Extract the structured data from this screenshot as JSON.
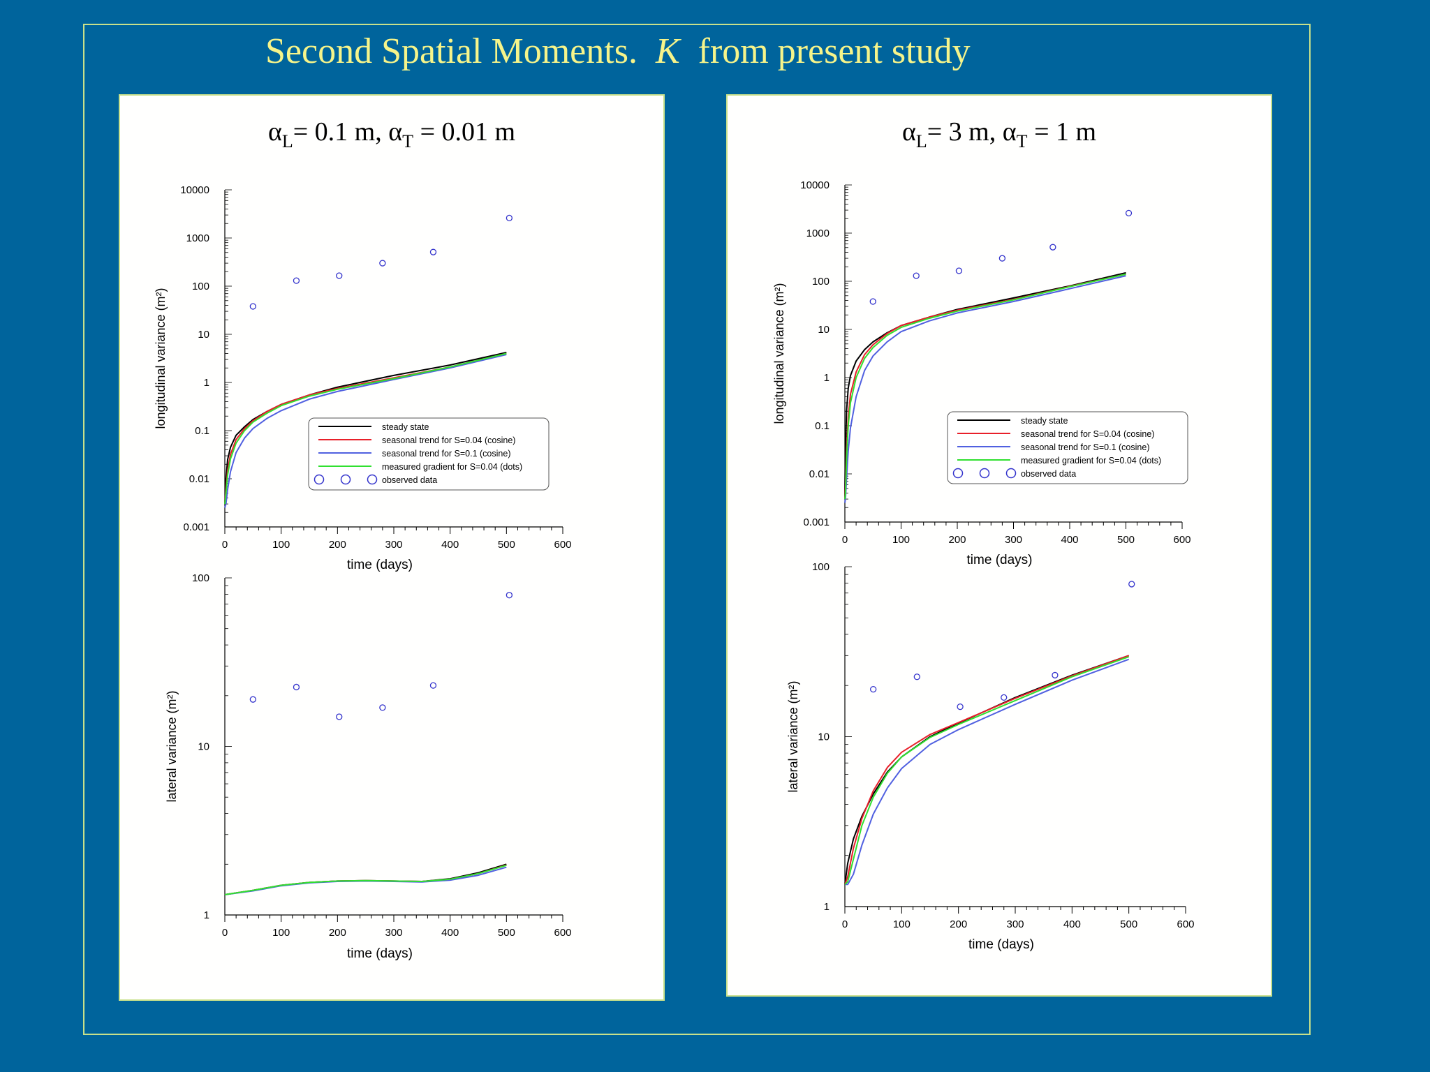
{
  "slide": {
    "title_main": "Second Spatial Moments.",
    "title_k": "K",
    "title_tail": "from present study"
  },
  "colors": {
    "background": "#00649c",
    "frame": "#c8e08a",
    "title": "#f6f48a",
    "steady": "#000000",
    "cos004": "#e8202a",
    "cos01": "#5060e0",
    "dots": "#30e030",
    "observed": "#3333cc"
  },
  "panels": [
    {
      "title": {
        "aL": "α",
        "aL_sub": "L",
        "aL_val": "= 0.1 m, ",
        "aT": "α",
        "aT_sub": "T",
        "aT_val": " = 0.01 m"
      }
    },
    {
      "title": {
        "aL": "α",
        "aL_sub": "L",
        "aL_val": "= 3 m, ",
        "aT": "α",
        "aT_sub": "T",
        "aT_val": " = 1 m"
      }
    }
  ],
  "legend": {
    "entries": [
      "steady  state",
      "seasonal  trend  for  S=0.04  (cosine)",
      "seasonal  trend  for  S=0.1    (cosine)",
      "measured  gradient  for  S=0.04  (dots)"
    ],
    "observed": "observed  data"
  },
  "chart_data": [
    {
      "type": "line",
      "panel": 0,
      "ylabel": "longitudinal  variance  (m²)",
      "xlabel": "time  (days)",
      "xlim": [
        0,
        600
      ],
      "ylim": [
        0.001,
        10000
      ],
      "log_y": true,
      "xticks": [
        "0",
        "100",
        "200",
        "300",
        "400",
        "500",
        "600"
      ],
      "yticks": [
        "0.001",
        "0.01",
        "0.1",
        "1",
        "10",
        "100",
        "1000",
        "10000"
      ],
      "legend": true,
      "series": [
        {
          "name": "steady  state",
          "color": "#000000",
          "x": [
            0,
            2,
            5,
            10,
            20,
            35,
            50,
            75,
            100,
            150,
            200,
            300,
            400,
            500
          ],
          "y": [
            0.003,
            0.01,
            0.025,
            0.045,
            0.08,
            0.12,
            0.17,
            0.25,
            0.35,
            0.55,
            0.8,
            1.4,
            2.3,
            4.2
          ]
        },
        {
          "name": "seasonal  trend  for  S=0.04  (cosine)",
          "color": "#e8202a",
          "x": [
            0,
            2,
            5,
            10,
            20,
            35,
            50,
            75,
            100,
            150,
            200,
            300,
            400,
            500
          ],
          "y": [
            0.003,
            0.006,
            0.015,
            0.032,
            0.065,
            0.11,
            0.16,
            0.25,
            0.35,
            0.55,
            0.75,
            1.25,
            2.1,
            4.0
          ]
        },
        {
          "name": "seasonal  trend  for  S=0.1    (cosine)",
          "color": "#5060e0",
          "x": [
            0,
            2,
            5,
            10,
            20,
            35,
            50,
            75,
            100,
            150,
            200,
            300,
            400,
            500
          ],
          "y": [
            0.0025,
            0.003,
            0.006,
            0.014,
            0.035,
            0.07,
            0.11,
            0.18,
            0.26,
            0.45,
            0.65,
            1.15,
            2.0,
            3.8
          ]
        },
        {
          "name": "measured  gradient  for  S=0.04  (dots)",
          "color": "#30e030",
          "x": [
            0,
            2,
            5,
            10,
            20,
            35,
            50,
            75,
            100,
            150,
            200,
            300,
            400,
            500
          ],
          "y": [
            0.003,
            0.005,
            0.012,
            0.026,
            0.055,
            0.1,
            0.15,
            0.23,
            0.33,
            0.52,
            0.72,
            1.2,
            2.1,
            4.0
          ]
        }
      ],
      "observed": {
        "name": "observed  data",
        "x": [
          50,
          127,
          203,
          280,
          370,
          505
        ],
        "y": [
          38,
          130,
          165,
          300,
          510,
          2600
        ]
      }
    },
    {
      "type": "line",
      "panel": 0,
      "ylabel": "lateral  variance  (m²)",
      "xlabel": "time  (days)",
      "xlim": [
        0,
        600
      ],
      "ylim": [
        1,
        100
      ],
      "log_y": true,
      "xticks": [
        "0",
        "100",
        "200",
        "300",
        "400",
        "500",
        "600"
      ],
      "yticks": [
        "1",
        "10",
        "100"
      ],
      "legend": false,
      "series": [
        {
          "name": "steady  state",
          "color": "#000000",
          "x": [
            0,
            50,
            100,
            150,
            200,
            250,
            300,
            350,
            400,
            450,
            500
          ],
          "y": [
            1.32,
            1.4,
            1.5,
            1.56,
            1.59,
            1.6,
            1.59,
            1.58,
            1.64,
            1.78,
            2.0
          ]
        },
        {
          "name": "seasonal  trend  for  S=0.04  (cosine)",
          "color": "#e8202a",
          "x": [
            0,
            50,
            100,
            150,
            200,
            250,
            300,
            350,
            400,
            450,
            500
          ],
          "y": [
            1.32,
            1.4,
            1.5,
            1.56,
            1.59,
            1.6,
            1.59,
            1.58,
            1.63,
            1.76,
            1.98
          ]
        },
        {
          "name": "seasonal  trend  for  S=0.1    (cosine)",
          "color": "#5060e0",
          "x": [
            0,
            50,
            100,
            150,
            200,
            250,
            300,
            350,
            400,
            450,
            500
          ],
          "y": [
            1.32,
            1.39,
            1.49,
            1.55,
            1.58,
            1.59,
            1.58,
            1.57,
            1.61,
            1.72,
            1.92
          ]
        },
        {
          "name": "measured  gradient  for  S=0.04  (dots)",
          "color": "#30e030",
          "x": [
            0,
            50,
            100,
            150,
            200,
            250,
            300,
            350,
            400,
            450,
            500
          ],
          "y": [
            1.32,
            1.4,
            1.5,
            1.56,
            1.59,
            1.6,
            1.59,
            1.58,
            1.63,
            1.76,
            1.97
          ]
        }
      ],
      "observed": {
        "name": "observed  data",
        "x": [
          50,
          127,
          203,
          280,
          370,
          505
        ],
        "y": [
          19,
          22.5,
          15,
          17,
          23,
          79
        ]
      }
    },
    {
      "type": "line",
      "panel": 1,
      "ylabel": "longitudinal  variance  (m²)",
      "xlabel": "time  (days)",
      "xlim": [
        0,
        600
      ],
      "ylim": [
        0.001,
        10000
      ],
      "log_y": true,
      "xticks": [
        "0",
        "100",
        "200",
        "300",
        "400",
        "500",
        "600"
      ],
      "yticks": [
        "0.001",
        "0.01",
        "0.1",
        "1",
        "10",
        "100",
        "1000",
        "10000"
      ],
      "legend": true,
      "series": [
        {
          "name": "steady  state",
          "color": "#000000",
          "x": [
            0,
            1,
            3,
            6,
            10,
            20,
            35,
            50,
            75,
            100,
            150,
            200,
            300,
            400,
            500
          ],
          "y": [
            0.003,
            0.03,
            0.2,
            0.6,
            1.1,
            2.2,
            3.8,
            5.5,
            8.5,
            12,
            18,
            26,
            45,
            80,
            150
          ]
        },
        {
          "name": "seasonal  trend  for  S=0.04  (cosine)",
          "color": "#e8202a",
          "x": [
            0,
            1,
            3,
            6,
            10,
            20,
            35,
            50,
            75,
            100,
            150,
            200,
            300,
            400,
            500
          ],
          "y": [
            0.003,
            0.005,
            0.03,
            0.15,
            0.45,
            1.3,
            3.0,
            4.8,
            8.2,
            12,
            18,
            25,
            42,
            78,
            140
          ]
        },
        {
          "name": "seasonal  trend  for  S=0.1    (cosine)",
          "color": "#5060e0",
          "x": [
            0,
            1,
            3,
            6,
            10,
            20,
            35,
            50,
            75,
            100,
            150,
            200,
            300,
            400,
            500
          ],
          "y": [
            0.0025,
            0.003,
            0.008,
            0.03,
            0.09,
            0.4,
            1.4,
            2.8,
            5.5,
            9,
            15,
            22,
            38,
            70,
            130
          ]
        },
        {
          "name": "measured  gradient  for  S=0.04  (dots)",
          "color": "#30e030",
          "x": [
            0,
            1,
            3,
            6,
            10,
            20,
            35,
            50,
            75,
            100,
            150,
            200,
            300,
            400,
            500
          ],
          "y": [
            0.003,
            0.004,
            0.02,
            0.1,
            0.3,
            1.0,
            2.5,
            4.2,
            7.5,
            11,
            17,
            24,
            41,
            77,
            140
          ]
        }
      ],
      "observed": {
        "name": "observed  data",
        "x": [
          50,
          127,
          203,
          280,
          370,
          505
        ],
        "y": [
          38,
          130,
          165,
          300,
          510,
          2600
        ]
      }
    },
    {
      "type": "line",
      "panel": 1,
      "ylabel": "lateral  variance  (m²)",
      "xlabel": "time  (days)",
      "xlim": [
        0,
        600
      ],
      "ylim": [
        1,
        100
      ],
      "log_y": true,
      "xticks": [
        "0",
        "100",
        "200",
        "300",
        "400",
        "500",
        "600"
      ],
      "yticks": [
        "1",
        "10",
        "100"
      ],
      "legend": false,
      "series": [
        {
          "name": "steady  state",
          "color": "#000000",
          "x": [
            0,
            5,
            15,
            30,
            50,
            75,
            100,
            150,
            200,
            300,
            400,
            500
          ],
          "y": [
            1.35,
            1.8,
            2.5,
            3.4,
            4.6,
            6.2,
            7.6,
            10,
            12,
            17,
            23,
            30
          ]
        },
        {
          "name": "seasonal  trend  for  S=0.04  (cosine)",
          "color": "#e8202a",
          "x": [
            0,
            5,
            15,
            30,
            50,
            75,
            100,
            150,
            200,
            300,
            400,
            500
          ],
          "y": [
            1.35,
            1.5,
            2.2,
            3.3,
            4.8,
            6.6,
            8.1,
            10.3,
            12.1,
            16.8,
            22.8,
            30
          ]
        },
        {
          "name": "seasonal  trend  for  S=0.1    (cosine)",
          "color": "#5060e0",
          "x": [
            0,
            5,
            15,
            30,
            50,
            75,
            100,
            150,
            200,
            300,
            400,
            500
          ],
          "y": [
            1.35,
            1.35,
            1.55,
            2.3,
            3.5,
            5.0,
            6.5,
            9.0,
            11,
            15.5,
            21.5,
            28.5
          ]
        },
        {
          "name": "measured  gradient  for  S=0.04  (dots)",
          "color": "#30e030",
          "x": [
            0,
            5,
            15,
            30,
            50,
            75,
            100,
            150,
            200,
            300,
            400,
            500
          ],
          "y": [
            1.35,
            1.4,
            1.9,
            3.0,
            4.4,
            6.1,
            7.6,
            9.9,
            11.8,
            16.3,
            22.5,
            29.5
          ]
        }
      ],
      "observed": {
        "name": "observed  data",
        "x": [
          50,
          127,
          203,
          280,
          370,
          505
        ],
        "y": [
          19,
          22.5,
          15,
          17,
          23,
          79
        ]
      }
    }
  ]
}
